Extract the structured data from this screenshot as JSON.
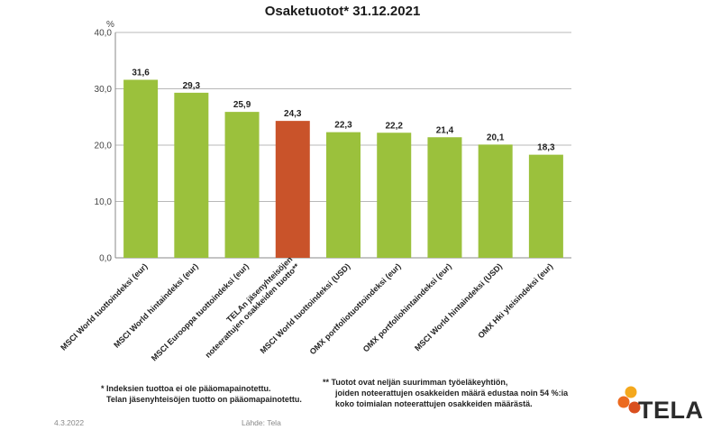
{
  "title": "Osaketuotot* 31.12.2021",
  "unit": "%",
  "chart_data": {
    "type": "bar",
    "title": "Osaketuotot* 31.12.2021",
    "ylabel": "%",
    "ylim": [
      0,
      40
    ],
    "yticks": [
      "0,0",
      "10,0",
      "20,0",
      "30,0",
      "40,0"
    ],
    "grid": true,
    "categories": [
      "MSCI World tuottoindeksi (eur)",
      "MSCI World hintaindeksi (eur)",
      "MSCI Eurooppa tuottoindeksi (eur)",
      "TELAn jäsenyhteisöjen noteerattujen osakkeiden tuotto**",
      "MSCI World tuottoindeksi (USD)",
      "OMX portfoliotuottoindeksi (eur)",
      "OMX portfoliohintaindeksi (eur)",
      "MSCI World hintaindeksi (USD)",
      "OMX Hki yleisindeksi (eur)"
    ],
    "values": [
      31.6,
      29.3,
      25.9,
      24.3,
      22.3,
      22.2,
      21.4,
      20.1,
      18.3
    ],
    "value_labels": [
      "31,6",
      "29,3",
      "25,9",
      "24,3",
      "22,3",
      "22,2",
      "21,4",
      "20,1",
      "18,3"
    ],
    "colors": [
      "#9bc13c",
      "#9bc13c",
      "#9bc13c",
      "#c9532a",
      "#9bc13c",
      "#9bc13c",
      "#9bc13c",
      "#9bc13c",
      "#9bc13c"
    ]
  },
  "notes": {
    "left_line1": "* Indeksien tuottoa ei ole pääomapainotettu.",
    "left_line2": "Telan jäsenyhteisöjen tuotto on pääomapainotettu.",
    "right_line1": "** Tuotot ovat neljän suurimman työeläkeyhtiön,",
    "right_line2": "joiden noteerattujen osakkeiden määrä edustaa noin 54 %:ia",
    "right_line3": "koko toimialan noteerattujen osakkeiden määrästä."
  },
  "footer": {
    "date": "4.3.2022",
    "source": "Lähde: Tela"
  },
  "logo": {
    "text": "TELA",
    "colors": [
      "#f4a81d",
      "#ec6a1f",
      "#d94f1e"
    ]
  }
}
